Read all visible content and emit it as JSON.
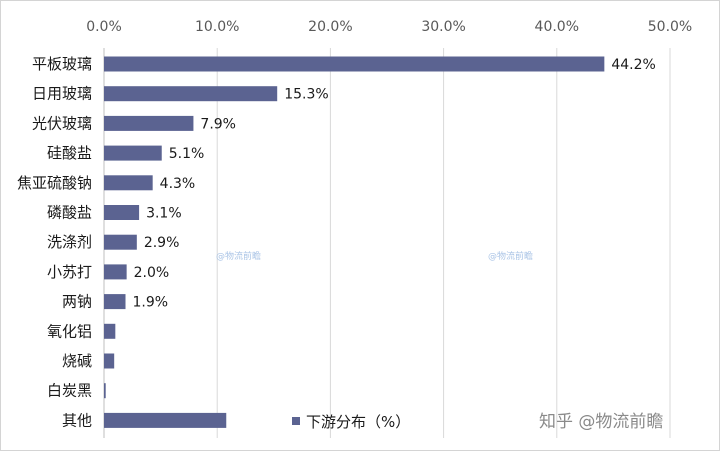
{
  "chart_data": {
    "type": "bar",
    "orientation": "horizontal",
    "categories": [
      "平板玻璃",
      "日用玻璃",
      "光伏玻璃",
      "硅酸盐",
      "焦亚硫酸钠",
      "磷酸盐",
      "洗涤剂",
      "小苏打",
      "两钠",
      "氧化铝",
      "烧碱",
      "白炭黑",
      "其他"
    ],
    "values": [
      44.2,
      15.3,
      7.9,
      5.1,
      4.3,
      3.1,
      2.9,
      2.0,
      1.9,
      1.0,
      0.9,
      0.15,
      10.8
    ],
    "data_labels": [
      "44.2%",
      "15.3%",
      "7.9%",
      "5.1%",
      "4.3%",
      "3.1%",
      "2.9%",
      "2.0%",
      "1.9%",
      "",
      "",
      "",
      ""
    ],
    "series": [
      {
        "name": "下游分布（%）",
        "values": [
          44.2,
          15.3,
          7.9,
          5.1,
          4.3,
          3.1,
          2.9,
          2.0,
          1.9,
          1.0,
          0.9,
          0.15,
          10.8
        ]
      }
    ],
    "x_ticks": [
      "0.0%",
      "10.0%",
      "20.0%",
      "30.0%",
      "40.0%",
      "50.0%"
    ],
    "xlim": [
      0,
      50
    ],
    "x_axis_position": "top",
    "grid": "vertical",
    "legend_position": "bottom-center",
    "bar_color": "#5b6391"
  },
  "legend_label": "下游分布（%）",
  "watermarks": {
    "small": "@物流前瞻",
    "large": "知乎 @物流前瞻"
  }
}
